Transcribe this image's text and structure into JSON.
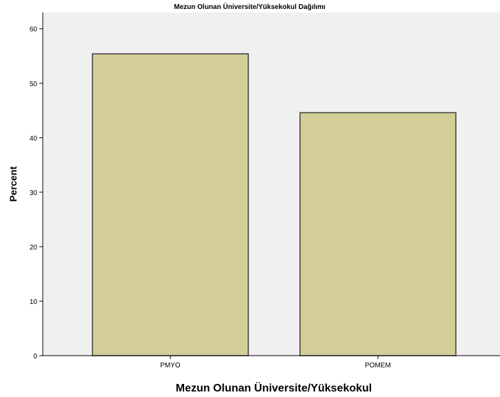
{
  "chart_data": {
    "type": "bar",
    "title": "Mezun Olunan Üniversite/Yüksekokul Dağılımı",
    "xlabel": "Mezun Olunan Üniversite/Yüksekokul",
    "ylabel": "Percent",
    "categories": [
      "PMYO",
      "POMEM"
    ],
    "values": [
      55.4,
      44.6
    ],
    "ylim": [
      0,
      63
    ],
    "yticks": [
      0,
      10,
      20,
      30,
      40,
      50,
      60
    ],
    "grid": false,
    "colors": {
      "bar_fill": "#d3cd98",
      "bar_stroke": "#3c3c3c",
      "plot_background": "#f0f0f0",
      "axis": "#000000"
    }
  }
}
